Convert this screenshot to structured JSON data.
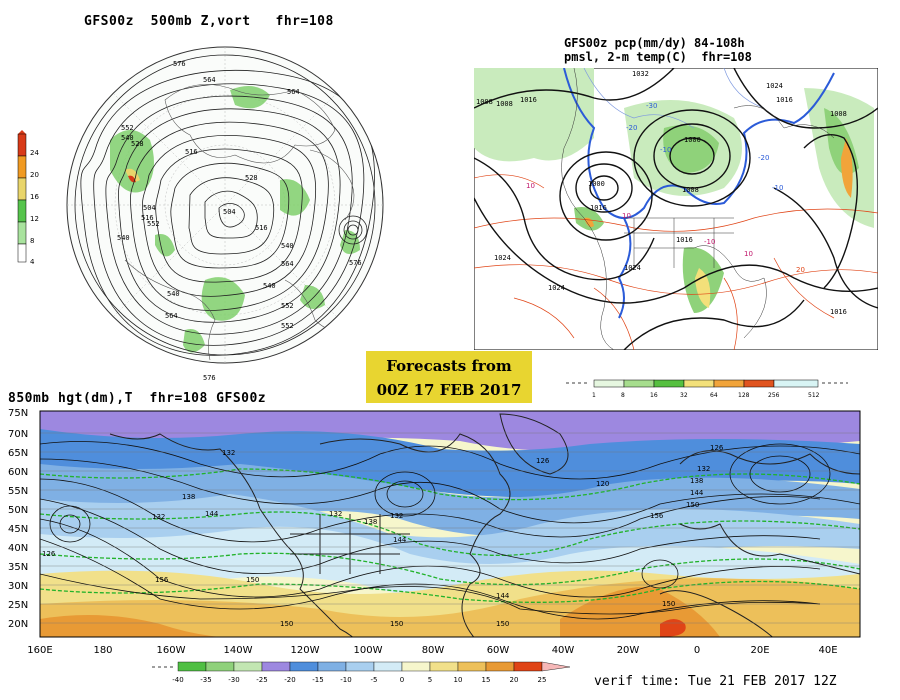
{
  "top_left": {
    "title": "GFS00z  500mb Z,vort   fhr=108",
    "legend_values": [
      "24",
      "20",
      "16",
      "12",
      "8",
      "4"
    ],
    "contour_labels": [
      "576",
      "564",
      "564",
      "552",
      "540",
      "528",
      "516",
      "504",
      "516",
      "540",
      "552",
      "564",
      "552",
      "540",
      "576",
      "576",
      "564",
      "540",
      "552",
      "528",
      "504",
      "516",
      "540"
    ]
  },
  "top_right": {
    "title_line1": "GFS00z pcp(mm/dy) 84-108h",
    "title_line2": "pmsl, 2-m temp(C)  fhr=108",
    "isobar_labels": [
      "1008",
      "1016",
      "1000",
      "1032",
      "1024",
      "1016",
      "1008",
      "1000",
      "1008",
      "1016",
      "1024",
      "1016",
      "1024",
      "1024",
      "1008",
      "1016"
    ],
    "isotherm_labels": [
      "-30",
      "-20",
      "-10",
      "-20",
      "-10",
      "20",
      "10",
      "10",
      "10",
      "-10"
    ],
    "colorbar_labels": [
      "1",
      "8",
      "16",
      "32",
      "64",
      "128",
      "256",
      "512"
    ]
  },
  "stamp": {
    "line1": "Forecasts from",
    "line2": "00Z 17 FEB 2017"
  },
  "bottom": {
    "title": "850mb hgt(dm),T  fhr=108 GFS00z",
    "lat_labels": [
      "75N",
      "70N",
      "65N",
      "60N",
      "55N",
      "50N",
      "45N",
      "40N",
      "35N",
      "30N",
      "25N",
      "20N"
    ],
    "lon_labels": [
      "160E",
      "180",
      "160W",
      "140W",
      "120W",
      "100W",
      "80W",
      "60W",
      "40W",
      "20W",
      "0",
      "20E",
      "40E"
    ],
    "height_labels": [
      "132",
      "138",
      "144",
      "132",
      "126",
      "156",
      "150",
      "132",
      "138",
      "132",
      "144",
      "150",
      "144",
      "150",
      "126",
      "120",
      "132",
      "138",
      "144",
      "150",
      "156",
      "150",
      "126",
      "150"
    ],
    "temp_scale_labels": [
      "-40",
      "-35",
      "-30",
      "-25",
      "-20",
      "-15",
      "-10",
      "-5",
      "0",
      "5",
      "10",
      "15",
      "20",
      "25"
    ],
    "verif_time": "verif time: Tue 21 FEB 2017 12Z"
  },
  "colors": {
    "vort_scale": [
      "#ffffff",
      "#a9e39e",
      "#56c44c",
      "#e9d56b",
      "#f09a22",
      "#d83a18"
    ],
    "pcp_scale": [
      "#e6f7e0",
      "#a6dd8d",
      "#56c040",
      "#f3e07a",
      "#f1a43a",
      "#e0541f",
      "#d8f4f4"
    ],
    "temp_scale": [
      "#4fbf43",
      "#8fd17b",
      "#c2e6b2",
      "#9d88e0",
      "#4f8edc",
      "#7fb0e4",
      "#a9cfef",
      "#d3ebf6",
      "#f6f6cc",
      "#f1e08a",
      "#edc05a",
      "#e89a35",
      "#e04416",
      "#f6b8b8"
    ]
  }
}
